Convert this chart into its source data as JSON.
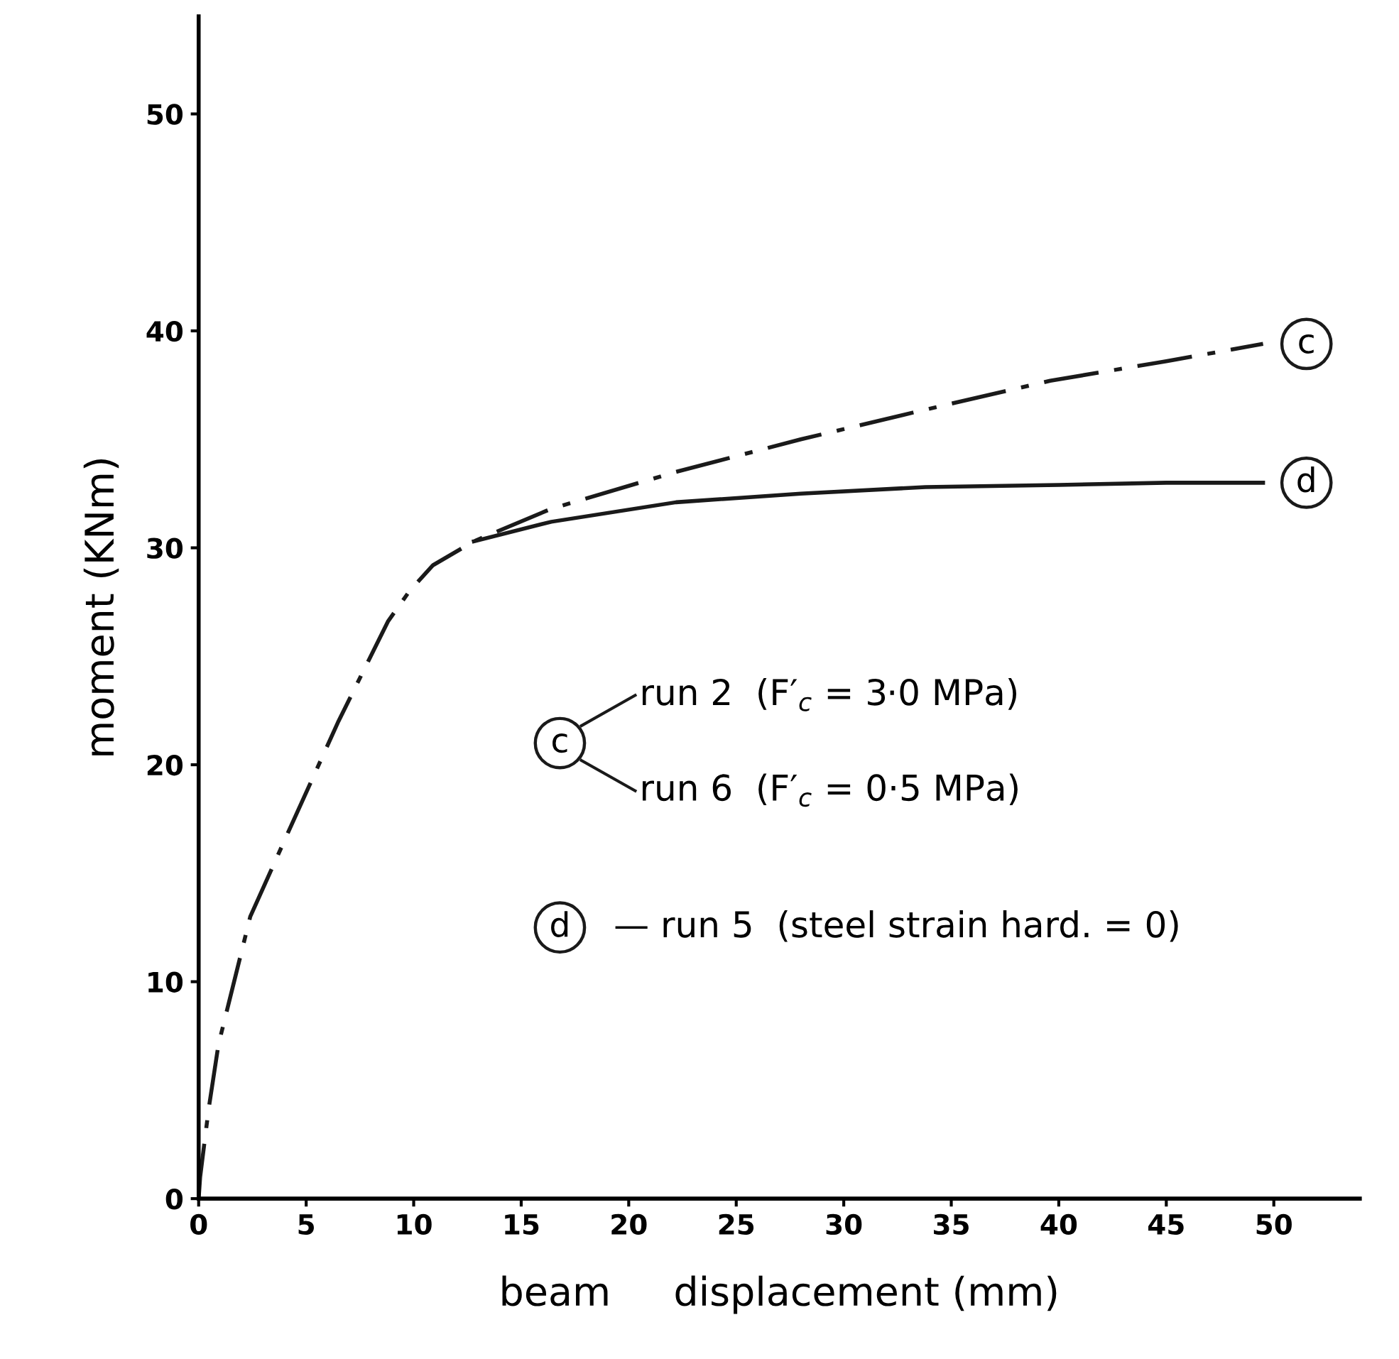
{
  "chart_data": {
    "type": "line",
    "xlabel": "beam     displacement (mm)",
    "ylabel": "moment (KNm)",
    "xlim": [
      0,
      54
    ],
    "ylim": [
      0,
      54.5
    ],
    "xticks": [
      0,
      5,
      10,
      15,
      20,
      25,
      30,
      35,
      40,
      45,
      50
    ],
    "yticks": [
      0,
      10,
      20,
      30,
      40,
      50
    ],
    "grid": false,
    "legend": false,
    "marker": "none",
    "series": [
      {
        "name": "c",
        "color": "#1a1a1a",
        "line_style": "dashed",
        "x": [
          0,
          0.07,
          0.46,
          0.92,
          2.4,
          4.35,
          6.5,
          8.8,
          9.8,
          10.9,
          12.8,
          16.4,
          22.2,
          28,
          33.5,
          39.6,
          45,
          49.5
        ],
        "values": [
          0,
          1.0,
          4.1,
          7.1,
          13.0,
          17.3,
          22.0,
          26.6,
          28.0,
          29.2,
          30.3,
          31.8,
          33.5,
          35.0,
          36.3,
          37.7,
          38.6,
          39.4
        ]
      },
      {
        "name": "d",
        "color": "#1a1a1a",
        "line_style": "solid",
        "x": [
          12.8,
          16.4,
          22.2,
          28,
          33.8,
          40,
          45,
          49.5
        ],
        "values": [
          30.3,
          31.2,
          32.1,
          32.5,
          32.8,
          32.9,
          33.0,
          33.0
        ]
      }
    ],
    "annotations": [
      "run 2  (F′$_{c}$ = 3·0 MPa)",
      "run 6  (F′$_{c}$ = 0·5 MPa)",
      "— run 5  (steel strain hard. = 0)"
    ]
  }
}
